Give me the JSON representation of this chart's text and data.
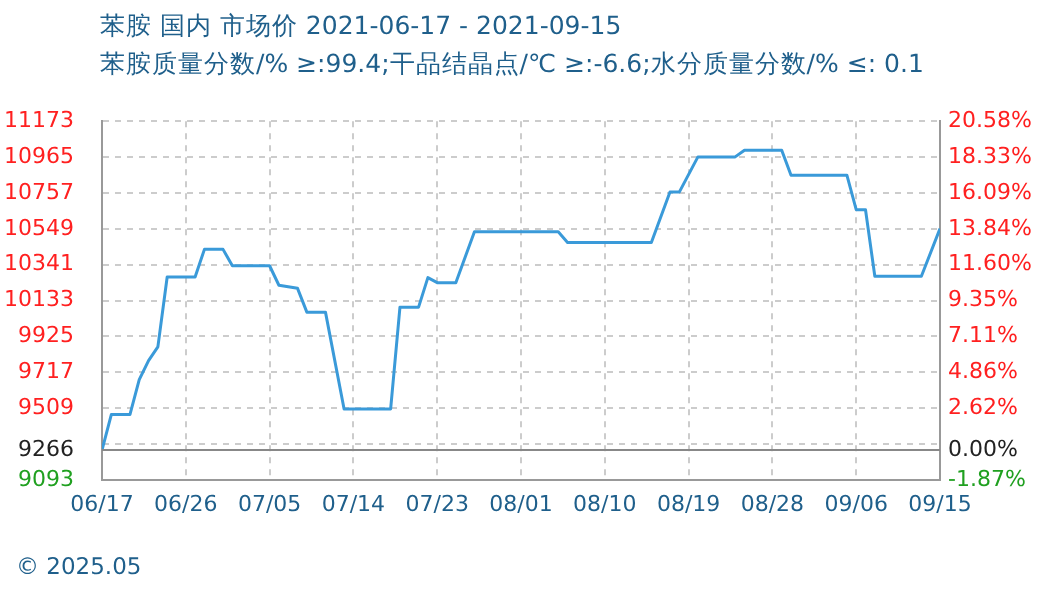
{
  "chart_data": {
    "type": "line",
    "title": "苯胺 国内 市场价 2021-06-17 - 2021-09-15",
    "subtitle": "苯胺质量分数/% ≥:99.4;干品结晶点/℃  ≥:-6.6;水分质量分数/%  ≤: 0.1",
    "annotations": [
      "© 2025.05"
    ],
    "x": [
      "--06-17",
      "--06-18",
      "--06-20",
      "--06-21",
      "--06-22",
      "--06-23",
      "--06-24",
      "--06-27",
      "--06-28",
      "--06-30",
      "--07-01",
      "--07-05",
      "--07-06",
      "--07-08",
      "--07-09",
      "--07-11",
      "--07-13",
      "--07-18",
      "--07-19",
      "--07-21",
      "--07-22",
      "--07-23",
      "--07-25",
      "--07-27",
      "--08-05",
      "--08-06",
      "--08-15",
      "--08-17",
      "--08-18",
      "--08-20",
      "--08-24",
      "--08-25",
      "--08-29",
      "--08-30",
      "--09-05",
      "--09-06",
      "--09-07",
      "--09-08",
      "--09-13",
      "--09-15"
    ],
    "series": [
      {
        "color": "#3a9ad9",
        "values": [
          9266,
          9472,
          9472,
          9675,
          9785,
          9865,
          10270,
          10270,
          10430,
          10430,
          10335,
          10335,
          10222,
          10204,
          10066,
          10066,
          9505,
          9505,
          10095,
          10095,
          10266,
          10237,
          10237,
          10532,
          10532,
          10470,
          10470,
          10762,
          10762,
          10966,
          10966,
          11005,
          11005,
          10860,
          10860,
          10660,
          10660,
          10274,
          10274,
          10550
        ]
      }
    ],
    "xlim": [
      "--06-17",
      "--09-15"
    ],
    "xticks": [
      {
        "value": "--06-17",
        "label": "06/17"
      },
      {
        "value": "--06-26",
        "label": "06/26"
      },
      {
        "value": "--07-05",
        "label": "07/05"
      },
      {
        "value": "--07-14",
        "label": "07/14"
      },
      {
        "value": "--07-23",
        "label": "07/23"
      },
      {
        "value": "--08-01",
        "label": "08/01"
      },
      {
        "value": "--08-10",
        "label": "08/10"
      },
      {
        "value": "--08-19",
        "label": "08/19"
      },
      {
        "value": "--08-28",
        "label": "08/28"
      },
      {
        "value": "--09-06",
        "label": "09/06"
      },
      {
        "value": "--09-15",
        "label": "09/15"
      }
    ],
    "ylim": [
      9093,
      11173
    ],
    "yticks": [
      11173,
      10965,
      10757,
      10549,
      10341,
      10133,
      9925,
      9717,
      9509,
      {
        "value": 9301,
        "label": null
      },
      9266,
      9093
    ],
    "y2lim": [
      -1.87,
      20.58
    ],
    "y2ticks": [
      {
        "value": 20.58,
        "label": "20.58%"
      },
      {
        "value": 18.33,
        "label": "18.33%"
      },
      {
        "value": 16.09,
        "label": "16.09%"
      },
      {
        "value": 13.84,
        "label": "13.84%"
      },
      {
        "value": 11.6,
        "label": "11.60%"
      },
      {
        "value": 9.35,
        "label": "9.35%"
      },
      {
        "value": 7.11,
        "label": "7.11%"
      },
      {
        "value": 4.86,
        "label": "4.86%"
      },
      {
        "value": 2.62,
        "label": "2.62%"
      },
      {
        "value": 0,
        "label": "0.00%"
      },
      {
        "value": -1.87,
        "label": "-1.87%"
      }
    ],
    "ref_lines": [
      {
        "axis": "y2",
        "value": 0,
        "color": "#888888"
      }
    ],
    "grid": true,
    "legend": false,
    "marker": "none",
    "line_style": "solid"
  }
}
